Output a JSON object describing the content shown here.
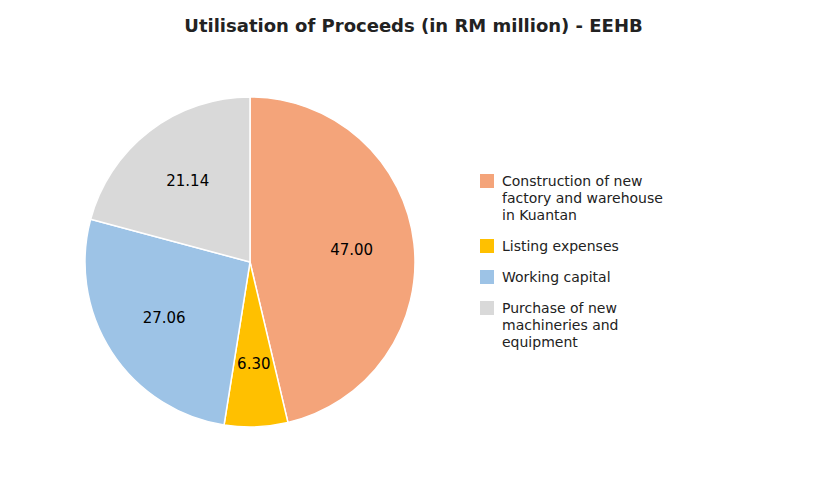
{
  "chart_data": {
    "type": "pie",
    "title": "Utilisation of Proceeds (in RM million) - EEHB",
    "categories": [
      "Construction of new\nfactory and warehouse\nin Kuantan",
      "Listing expenses",
      "Working capital",
      "Purchase of new\nmachineries and\nequipment"
    ],
    "values": [
      47.0,
      6.3,
      27.06,
      21.14
    ],
    "value_labels": [
      "47.00",
      "6.30",
      "27.06",
      "21.14"
    ],
    "colors": [
      "#F4A47A",
      "#FFC000",
      "#9DC3E6",
      "#D9D9D9"
    ],
    "data_labels": true,
    "legend": "right"
  }
}
